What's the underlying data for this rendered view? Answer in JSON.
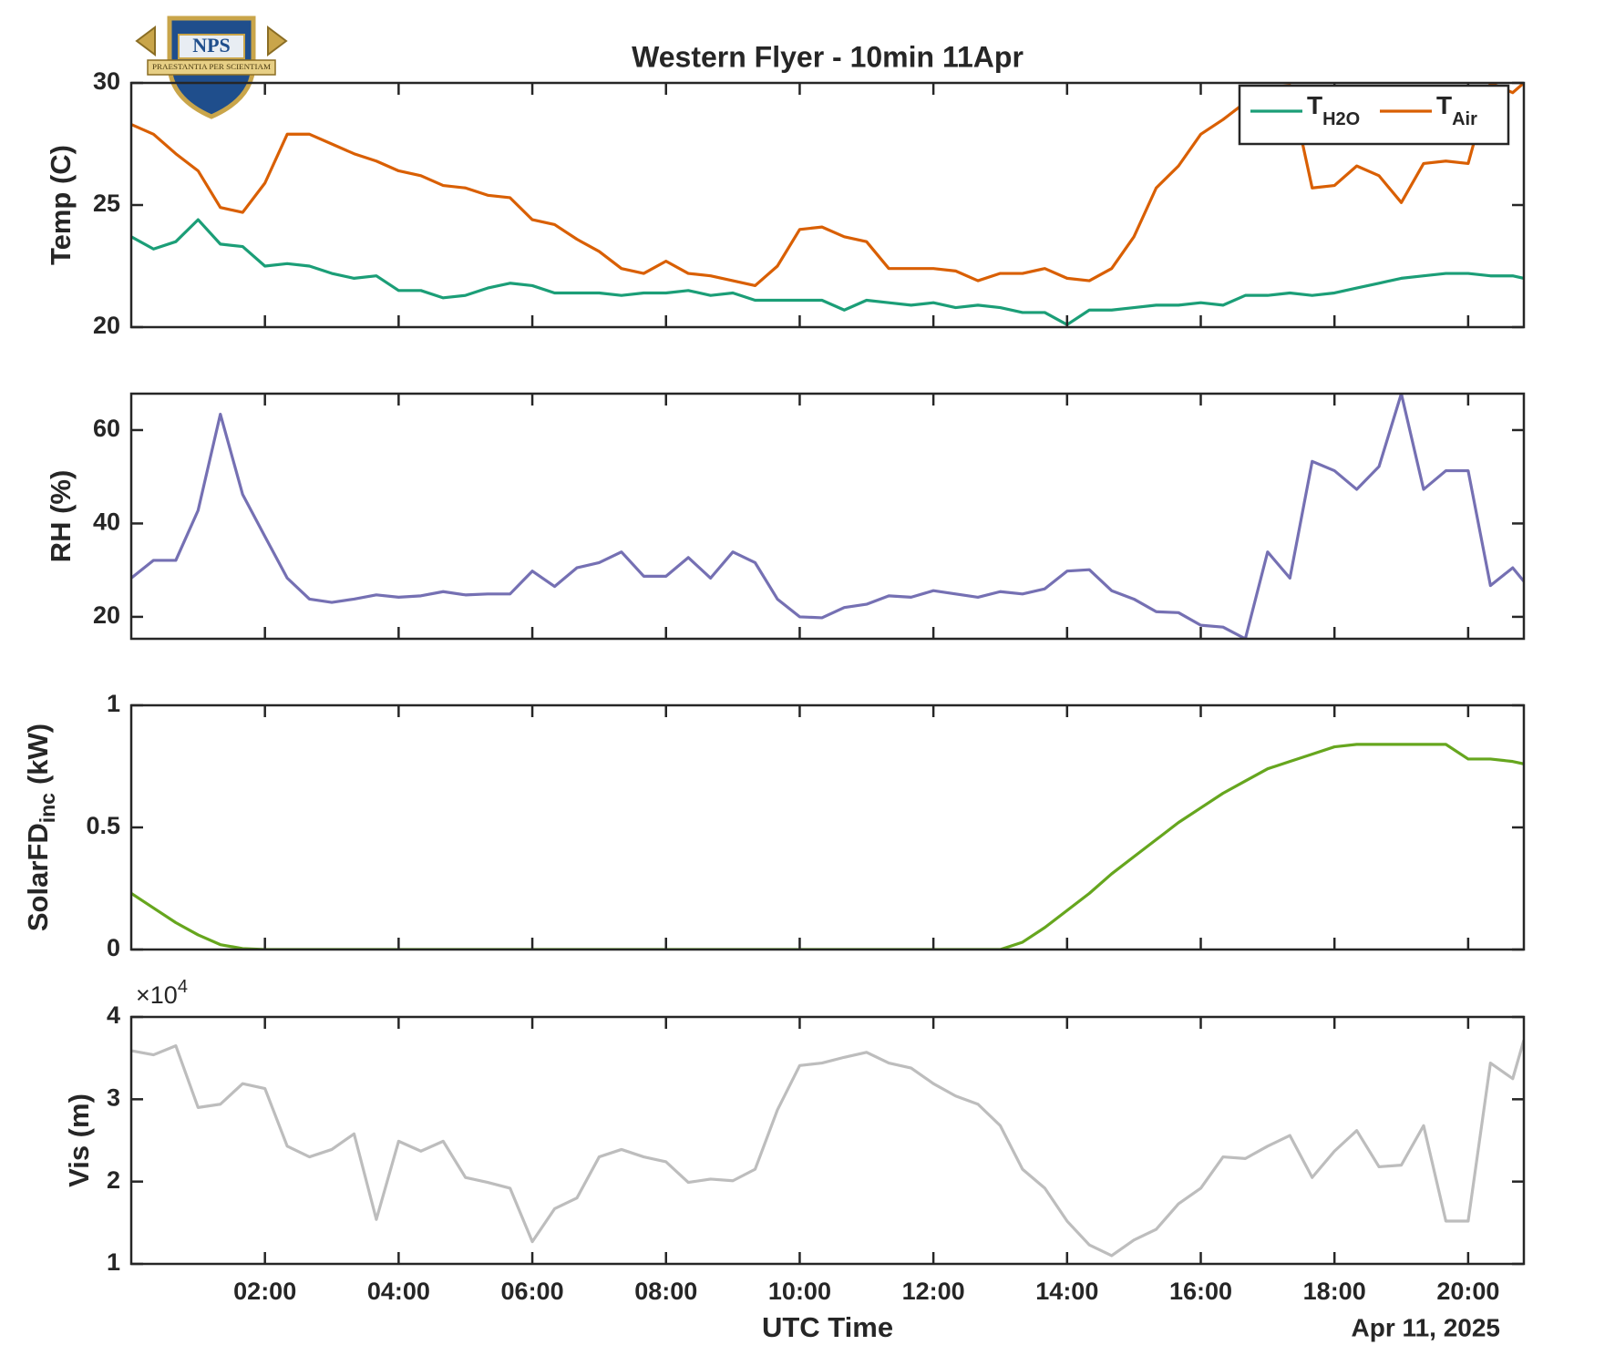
{
  "logo": {
    "name": "NPS",
    "motto": "PRAESTANTIA PER SCIENTIAM"
  },
  "chart_data": {
    "type": "line",
    "title": "Western Flyer - 10min 11Apr",
    "xlabel": "UTC Time",
    "date_label": "Apr 11, 2025",
    "x": [
      "00:00",
      "00:20",
      "00:40",
      "01:00",
      "01:20",
      "01:40",
      "02:00",
      "02:20",
      "02:40",
      "03:00",
      "03:20",
      "03:40",
      "04:00",
      "04:20",
      "04:40",
      "05:00",
      "05:20",
      "05:40",
      "06:00",
      "06:20",
      "06:40",
      "07:00",
      "07:20",
      "07:40",
      "08:00",
      "08:20",
      "08:40",
      "09:00",
      "09:20",
      "09:40",
      "10:00",
      "10:20",
      "10:40",
      "11:00",
      "11:20",
      "11:40",
      "12:00",
      "12:20",
      "12:40",
      "13:00",
      "13:20",
      "13:40",
      "14:00",
      "14:20",
      "14:40",
      "15:00",
      "15:20",
      "15:40",
      "16:00",
      "16:20",
      "16:40",
      "17:00",
      "17:20",
      "17:40",
      "18:00",
      "18:20",
      "18:40",
      "19:00",
      "19:20",
      "19:40",
      "20:00",
      "20:20",
      "20:40",
      "20:50"
    ],
    "xlim": [
      "00:00",
      "20:50"
    ],
    "xticks": [
      "02:00",
      "04:00",
      "06:00",
      "08:00",
      "10:00",
      "12:00",
      "14:00",
      "16:00",
      "18:00",
      "20:00"
    ],
    "panels": [
      {
        "ylabel": "Temp (C)",
        "ylim": [
          20,
          30
        ],
        "yticks": [
          20,
          25,
          30
        ],
        "legend": "upper right",
        "series": [
          {
            "name": "T",
            "name_sub": "H2O",
            "color": "#1b9e77",
            "values": [
              23.7,
              23.2,
              23.5,
              24.4,
              23.4,
              23.3,
              22.5,
              22.6,
              22.5,
              22.2,
              22.0,
              22.1,
              21.5,
              21.5,
              21.2,
              21.3,
              21.6,
              21.8,
              21.7,
              21.4,
              21.4,
              21.4,
              21.3,
              21.4,
              21.4,
              21.5,
              21.3,
              21.4,
              21.1,
              21.1,
              21.1,
              21.1,
              20.7,
              21.1,
              21.0,
              20.9,
              21.0,
              20.8,
              20.9,
              20.8,
              20.6,
              20.6,
              20.1,
              20.7,
              20.7,
              20.8,
              20.9,
              20.9,
              21.0,
              20.9,
              21.3,
              21.3,
              21.4,
              21.3,
              21.4,
              21.6,
              21.8,
              22.0,
              22.1,
              22.2,
              22.2,
              22.1,
              22.1,
              22.0
            ]
          },
          {
            "name": "T",
            "name_sub": "Air",
            "color": "#d95f02",
            "values": [
              28.3,
              27.9,
              27.1,
              26.4,
              24.9,
              24.7,
              25.9,
              27.9,
              27.9,
              27.5,
              27.1,
              26.8,
              26.4,
              26.2,
              25.8,
              25.7,
              25.4,
              25.3,
              24.4,
              24.2,
              23.6,
              23.1,
              22.4,
              22.2,
              22.7,
              22.2,
              22.1,
              21.9,
              21.7,
              22.5,
              24.0,
              24.1,
              23.7,
              23.5,
              22.4,
              22.4,
              22.4,
              22.3,
              21.9,
              22.2,
              22.2,
              22.4,
              22.0,
              21.9,
              22.4,
              23.7,
              25.7,
              26.6,
              27.9,
              28.5,
              29.2,
              29.8,
              29.9,
              25.7,
              25.8,
              26.6,
              26.2,
              25.1,
              26.7,
              26.8,
              26.7,
              30.0,
              29.6,
              30.0
            ]
          }
        ]
      },
      {
        "ylabel": "RH (%)",
        "ylim": [
          15.3,
          67.8
        ],
        "yticks": [
          20,
          40,
          60
        ],
        "series": [
          {
            "color": "#7570b3",
            "values": [
              28.3,
              32.1,
              32.1,
              42.8,
              63.4,
              46.2,
              37.2,
              28.3,
              23.8,
              23.1,
              23.8,
              24.7,
              24.2,
              24.5,
              25.4,
              24.7,
              24.9,
              24.9,
              29.8,
              26.5,
              30.5,
              31.6,
              33.9,
              28.7,
              28.7,
              32.7,
              28.3,
              33.9,
              31.6,
              23.8,
              20.0,
              19.8,
              22.0,
              22.7,
              24.5,
              24.2,
              25.6,
              24.9,
              24.2,
              25.4,
              24.9,
              26.0,
              29.8,
              30.1,
              25.6,
              23.8,
              21.1,
              20.9,
              18.2,
              17.8,
              15.3,
              33.9,
              28.3,
              53.3,
              51.3,
              47.3,
              52.2,
              67.8,
              47.3,
              51.3,
              51.3,
              26.7,
              30.5,
              27.6
            ]
          }
        ]
      },
      {
        "ylabel": "SolarFD",
        "ylabel_sub": "inc",
        "ylabel_unit": "(kW)",
        "ylim": [
          0,
          1
        ],
        "yticks": [
          0,
          0.5,
          1
        ],
        "series": [
          {
            "color": "#66a61e",
            "values": [
              0.23,
              0.17,
              0.11,
              0.06,
              0.02,
              0.004,
              0,
              0,
              0,
              0,
              0,
              0,
              0,
              0,
              0,
              0,
              0,
              0,
              0,
              0,
              0,
              0,
              0,
              0,
              0,
              0,
              0,
              0,
              0,
              0,
              0,
              0,
              0,
              0,
              0,
              0,
              0,
              0,
              0,
              0,
              0.03,
              0.09,
              0.16,
              0.23,
              0.31,
              0.38,
              0.45,
              0.52,
              0.58,
              0.64,
              0.69,
              0.74,
              0.77,
              0.8,
              0.83,
              0.84,
              0.84,
              0.84,
              0.84,
              0.84,
              0.78,
              0.78,
              0.77,
              0.76
            ]
          }
        ]
      },
      {
        "ylabel": "Vis (m)",
        "y_exponent_label": "×10",
        "y_exponent": 4,
        "ylim": [
          10000,
          40000
        ],
        "yticks": [
          {
            "value": 10000,
            "label": "1"
          },
          {
            "value": 20000,
            "label": "2"
          },
          {
            "value": 30000,
            "label": "3"
          },
          {
            "value": 40000,
            "label": "4"
          }
        ],
        "series": [
          {
            "color": "#bdbdbd",
            "values": [
              35900,
              35400,
              36500,
              29000,
              29400,
              31900,
              31300,
              24300,
              23000,
              23900,
              25800,
              15400,
              24900,
              23700,
              24900,
              20500,
              19900,
              19200,
              12700,
              16700,
              18000,
              23000,
              23900,
              23000,
              22400,
              19900,
              20300,
              20100,
              21500,
              28700,
              34100,
              34400,
              35100,
              35700,
              34400,
              33800,
              31900,
              30400,
              29400,
              26800,
              21500,
              19200,
              15200,
              12300,
              11000,
              12900,
              14200,
              17300,
              19200,
              23000,
              22800,
              24300,
              25600,
              20500,
              23700,
              26200,
              21800,
              22000,
              26800,
              15200,
              15200,
              34400,
              32500,
              37200
            ]
          }
        ]
      }
    ]
  }
}
